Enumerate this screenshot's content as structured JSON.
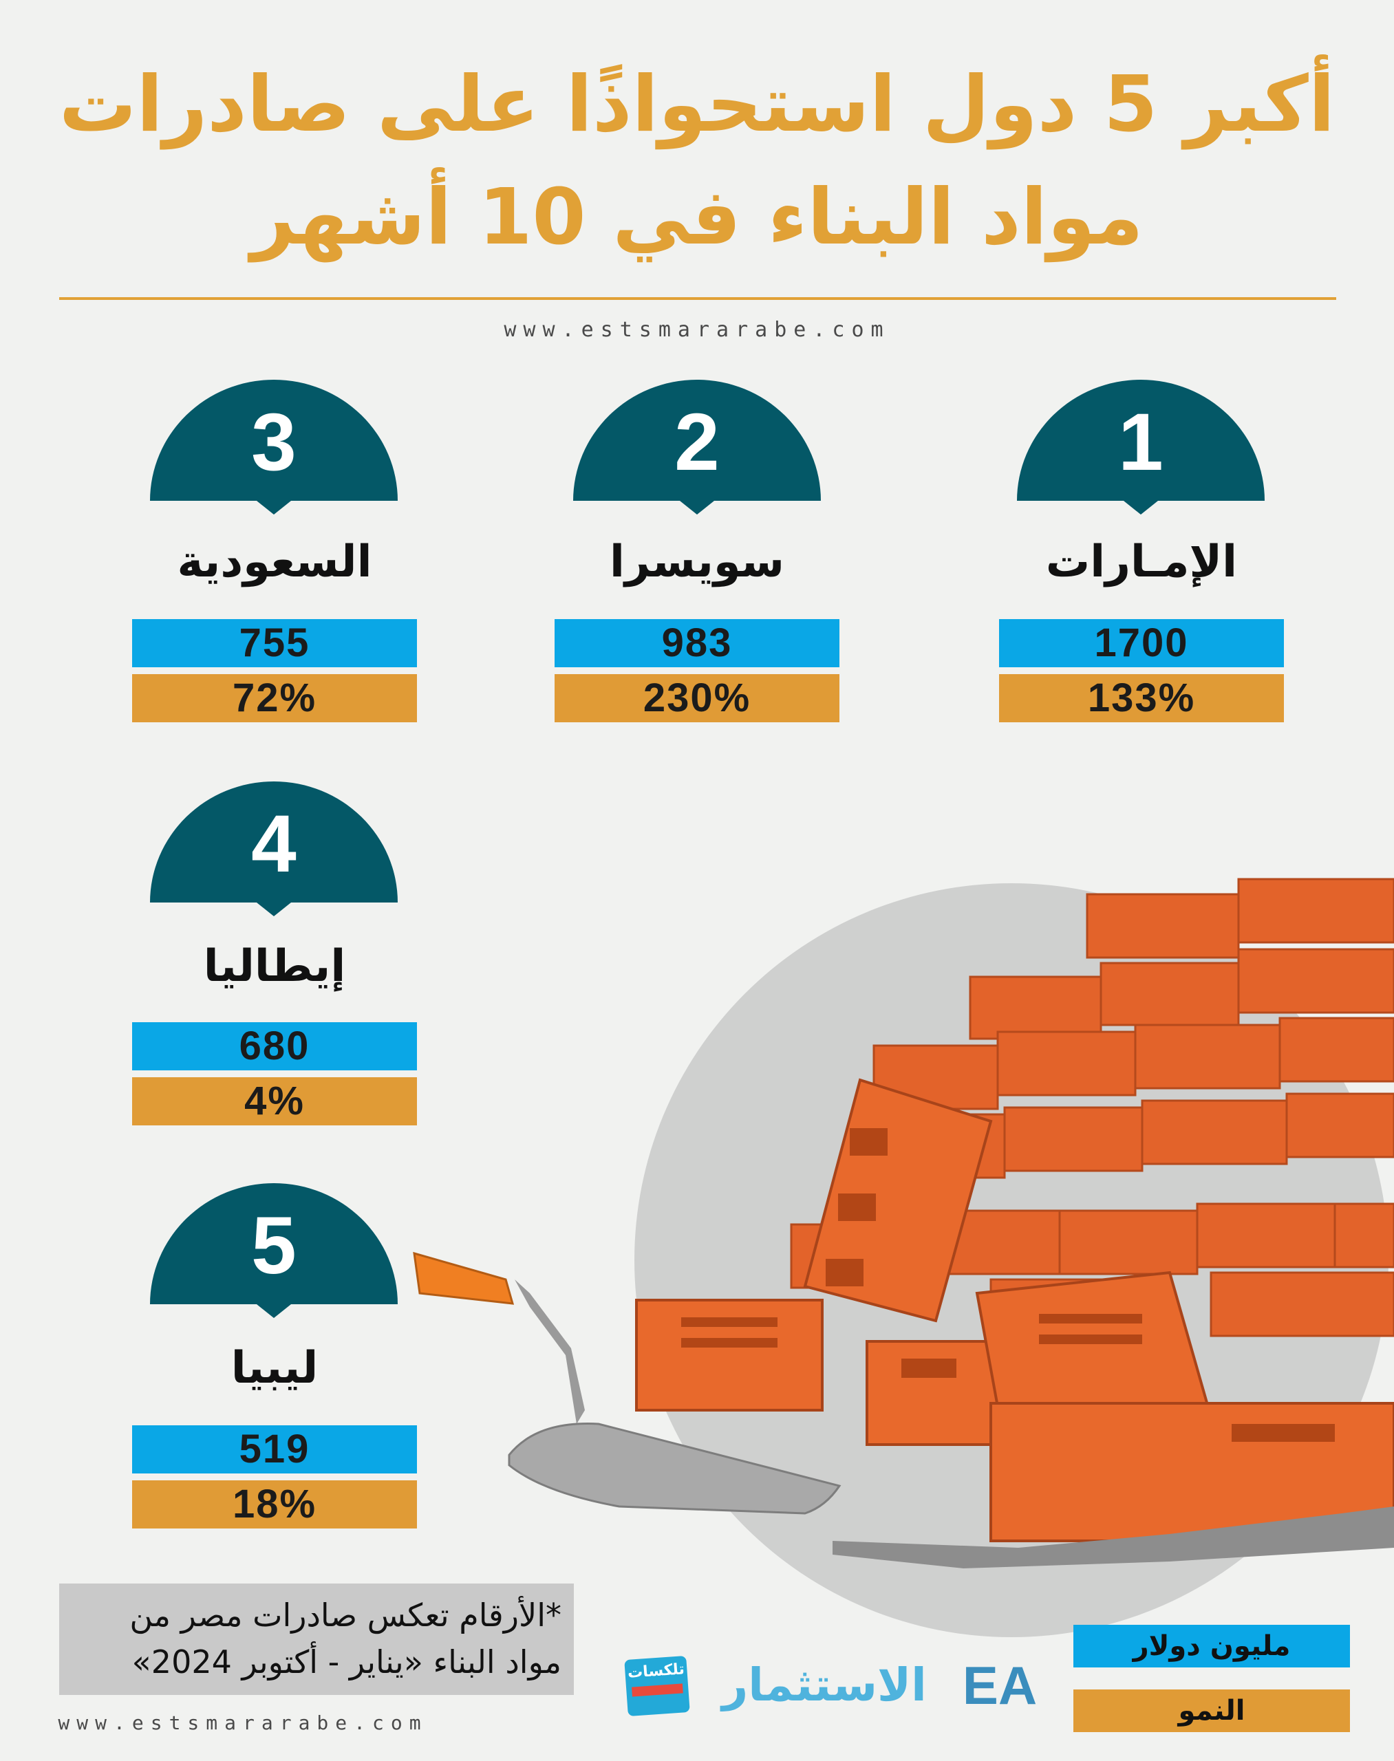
{
  "header": {
    "title_line1": "أكبر 5 دول استحواذًا على صادرات",
    "title_line2": "مواد البناء في 10 أشهر",
    "website_top": "www.estsmararabe.com"
  },
  "colors": {
    "title": "#e1a136",
    "badge": "#045867",
    "value_bar": "#0aa7e6",
    "growth_bar": "#e09b36",
    "background": "#f1f2f0"
  },
  "countries": [
    {
      "rank": "1",
      "name": "الإمـارات",
      "value": "1700",
      "growth": "133%"
    },
    {
      "rank": "2",
      "name": "سويسرا",
      "value": "983",
      "growth": "230%"
    },
    {
      "rank": "3",
      "name": "السعودية",
      "value": "755",
      "growth": "72%"
    },
    {
      "rank": "4",
      "name": "إيطاليا",
      "value": "680",
      "growth": "4%"
    },
    {
      "rank": "5",
      "name": "ليبيا",
      "value": "519",
      "growth": "18%"
    }
  ],
  "footer": {
    "note_line1": "*الأرقام تعكس صادرات مصر من",
    "note_line2": "مواد البناء «يناير - أكتوبر 2024»",
    "website_bottom": "www.estsmararabe.com",
    "legend_value": "مليون دولار",
    "legend_growth": "النمو",
    "logo_talkasat": "تلكسات",
    "logo_estithmar": "الاستثمار",
    "logo_ea": "EA"
  },
  "icons": [
    "rank-badge-shape",
    "bricks-trowel-illustration"
  ]
}
